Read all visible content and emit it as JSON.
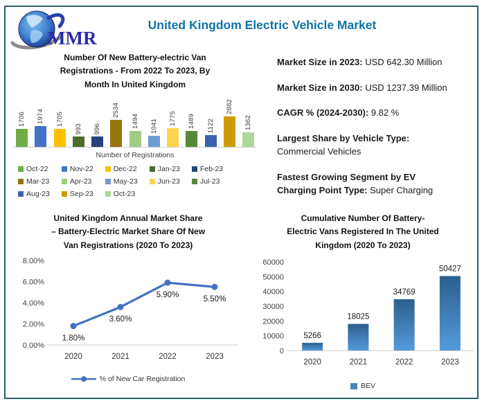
{
  "header": {
    "title": "United Kingdom Electric Vehicle Market",
    "logo_text": "MMR"
  },
  "theme": {
    "border_color": "#2A5F6F",
    "title_color": "#0F73A8",
    "text_color": "#1A1A1A",
    "axis_text_color": "#3F3F3F",
    "baseline_color": "#C9C9C9"
  },
  "stats": {
    "items": [
      {
        "label": "Market Size in 2023:",
        "value": "USD 642.30 Million"
      },
      {
        "label": "Market Size in 2030:",
        "value": "USD 1237.39 Million"
      },
      {
        "label": "CAGR % (2024-2030):",
        "value": "9.82 %"
      },
      {
        "label": "Largest Share by Vehicle Type:",
        "value": "Commercial Vehicles"
      },
      {
        "label": "Fastest Growing Segment by EV Charging Point Type:",
        "value": "Super Charging"
      }
    ]
  },
  "chart_data": [
    {
      "id": "monthly-registrations",
      "type": "bar",
      "title": "Number Of New Battery-electric Van Registrations - From 2022 To 2023, By Month In United Kingdom",
      "title_lines": [
        "Number Of New Battery-electric Van",
        "Registrations - From 2022 To 2023, By",
        "Month In United Kingdom"
      ],
      "xlabel": "Number of Registrations",
      "ylabel": "",
      "categories": [
        "Oct-22",
        "Nov-22",
        "Dec-22",
        "Jan-23",
        "Feb-23",
        "Mar-23",
        "Apr-23",
        "May-23",
        "Jun-23",
        "Jul-23",
        "Aug-23",
        "Sep-23",
        "Oct-23"
      ],
      "values": [
        1706,
        1974,
        1705,
        993,
        996,
        2534,
        1494,
        1041,
        1775,
        1489,
        1122,
        2882,
        1362
      ],
      "colors": [
        "#70AD47",
        "#4472C4",
        "#FFC000",
        "#4C6B2B",
        "#26437C",
        "#97750A",
        "#A0CC81",
        "#6E9BD5",
        "#FFD34D",
        "#578839",
        "#3A63AC",
        "#CD9B00",
        "#AFD695"
      ],
      "legend_position": "bottom",
      "grid": false
    },
    {
      "id": "annual-market-share",
      "type": "line",
      "title": "United Kingdom Annual Market Share – Battery-Electric Market Share Of New Van Registrations (2020 To 2023)",
      "title_lines": [
        "United Kingdom Annual Market Share",
        "– Battery-Electric Market Share Of New",
        "Van Registrations (2020 To 2023)"
      ],
      "categories": [
        "2020",
        "2021",
        "2022",
        "2023"
      ],
      "values": [
        1.8,
        3.6,
        5.9,
        5.5
      ],
      "point_labels": [
        "1.80%",
        "3.60%",
        "5.90%",
        "5.50%"
      ],
      "ylim": [
        0,
        8
      ],
      "yticks": [
        "0.00%",
        "2.00%",
        "4.00%",
        "6.00%",
        "8.00%"
      ],
      "series_name": "% of New Car Registration",
      "line_color": "#4472C4",
      "legend_position": "bottom",
      "grid": false
    },
    {
      "id": "cumulative-bev",
      "type": "bar",
      "title": "Cumulative Number Of Battery-Electric Vans Registered In The United Kingdom (2020 To 2023)",
      "title_lines": [
        "Cumulative Number Of Battery-",
        "Electric Vans Registered In The United",
        "Kingdom (2020 To 2023)"
      ],
      "categories": [
        "2020",
        "2021",
        "2022",
        "2023"
      ],
      "values": [
        5266,
        18025,
        34769,
        50427
      ],
      "ylim": [
        0,
        60000
      ],
      "yticks": [
        "0",
        "10000",
        "20000",
        "30000",
        "40000",
        "50000",
        "60000"
      ],
      "series_name": "BEV",
      "bar_gradient": [
        "#2B5F8E",
        "#549BDB"
      ],
      "legend_swatch_color": "#4A85B8",
      "legend_position": "bottom",
      "grid": false
    }
  ]
}
